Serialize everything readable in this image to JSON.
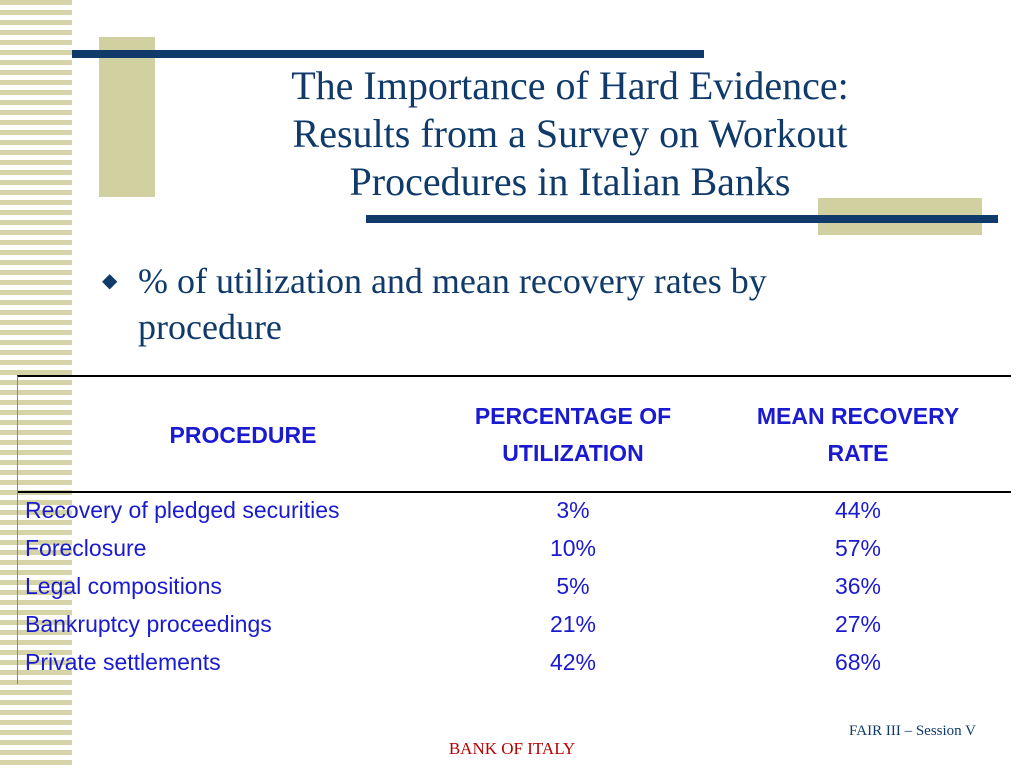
{
  "slide": {
    "title_lines": [
      "The Importance of Hard Evidence:",
      "Results from a Survey on Workout",
      "Procedures in Italian Banks"
    ],
    "bullet": {
      "icon": "diamond-bullet-icon",
      "line1": "% of utilization and mean recovery rates by",
      "line2": "procedure"
    }
  },
  "table": {
    "headers": {
      "procedure": "PROCEDURE",
      "utilization_line1": "PERCENTAGE OF",
      "utilization_line2": "UTILIZATION",
      "recovery_line1": "MEAN RECOVERY",
      "recovery_line2": "RATE"
    },
    "rows": [
      {
        "procedure": "Recovery of pledged securities",
        "utilization": "3%",
        "recovery": "44%"
      },
      {
        "procedure": "Foreclosure",
        "utilization": "10%",
        "recovery": "57%"
      },
      {
        "procedure": "Legal compositions",
        "utilization": "5%",
        "recovery": "36%"
      },
      {
        "procedure": "Bankruptcy proceedings",
        "utilization": "21%",
        "recovery": "27%"
      },
      {
        "procedure": "Private settlements",
        "utilization": "42%",
        "recovery": "68%"
      }
    ]
  },
  "footer": {
    "session": "FAIR III – Session V",
    "organization": "BANK OF ITALY"
  },
  "colors": {
    "navy": "#0f3a69",
    "table_text": "#1a1ad0",
    "footer_red": "#b80000",
    "khaki": "#d0d0a0"
  }
}
